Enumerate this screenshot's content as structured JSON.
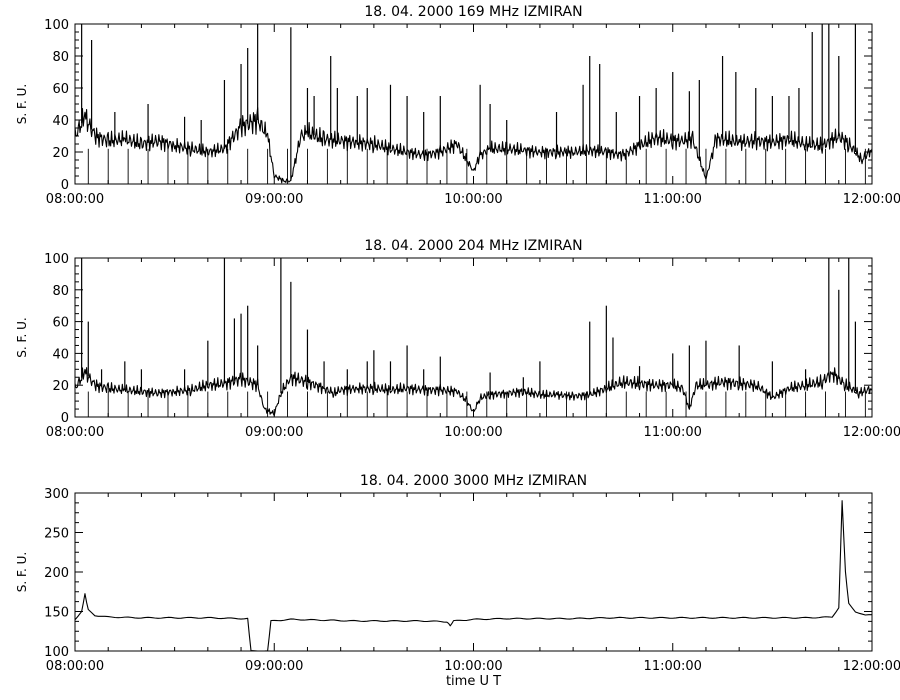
{
  "chart_data": [
    {
      "type": "line",
      "title": "18.  04.  2000    169  MHz    IZMIRAN",
      "ylabel": "S. F. U.",
      "xlabel": "",
      "xlim": [
        "08:00:00",
        "12:00:00"
      ],
      "ylim": [
        0,
        100
      ],
      "x_ticks": [
        "08:00:00",
        "09:00:00",
        "10:00:00",
        "11:00:00",
        "12:00:00"
      ],
      "y_ticks": [
        0,
        20,
        40,
        60,
        80,
        100
      ],
      "grid": false,
      "series": [
        {
          "values": [
            [
              "08:00",
              30
            ],
            [
              "08:03",
              42
            ],
            [
              "08:06",
              30
            ],
            [
              "08:10",
              27
            ],
            [
              "08:15",
              28
            ],
            [
              "08:20",
              25
            ],
            [
              "08:25",
              27
            ],
            [
              "08:30",
              24
            ],
            [
              "08:35",
              22
            ],
            [
              "08:40",
              20
            ],
            [
              "08:45",
              22
            ],
            [
              "08:50",
              36
            ],
            [
              "08:55",
              40
            ],
            [
              "08:58",
              30
            ],
            [
              "09:00",
              5
            ],
            [
              "09:03",
              2
            ],
            [
              "09:05",
              2
            ],
            [
              "09:08",
              30
            ],
            [
              "09:10",
              32
            ],
            [
              "09:15",
              28
            ],
            [
              "09:20",
              27
            ],
            [
              "09:25",
              26
            ],
            [
              "09:30",
              25
            ],
            [
              "09:35",
              22
            ],
            [
              "09:40",
              20
            ],
            [
              "09:45",
              18
            ],
            [
              "09:50",
              20
            ],
            [
              "09:55",
              25
            ],
            [
              "10:00",
              8
            ],
            [
              "10:02",
              18
            ],
            [
              "10:05",
              22
            ],
            [
              "10:10",
              22
            ],
            [
              "10:15",
              21
            ],
            [
              "10:20",
              20
            ],
            [
              "10:25",
              20
            ],
            [
              "10:30",
              20
            ],
            [
              "10:35",
              21
            ],
            [
              "10:40",
              20
            ],
            [
              "10:45",
              18
            ],
            [
              "10:50",
              24
            ],
            [
              "10:55",
              29
            ],
            [
              "11:00",
              27
            ],
            [
              "11:03",
              27
            ],
            [
              "11:06",
              28
            ],
            [
              "11:10",
              3
            ],
            [
              "11:13",
              28
            ],
            [
              "11:15",
              28
            ],
            [
              "11:20",
              26
            ],
            [
              "11:25",
              27
            ],
            [
              "11:30",
              26
            ],
            [
              "11:35",
              28
            ],
            [
              "11:40",
              25
            ],
            [
              "11:45",
              24
            ],
            [
              "11:50",
              30
            ],
            [
              "11:53",
              25
            ],
            [
              "11:57",
              15
            ],
            [
              "12:00",
              22
            ]
          ],
          "spikes": [
            [
              "08:02",
              100
            ],
            [
              "08:05",
              90
            ],
            [
              "08:12",
              45
            ],
            [
              "08:22",
              50
            ],
            [
              "08:33",
              42
            ],
            [
              "08:38",
              40
            ],
            [
              "08:45",
              65
            ],
            [
              "08:50",
              75
            ],
            [
              "08:52",
              85
            ],
            [
              "08:55",
              100
            ],
            [
              "09:05",
              98
            ],
            [
              "09:10",
              60
            ],
            [
              "09:12",
              55
            ],
            [
              "09:17",
              80
            ],
            [
              "09:19",
              60
            ],
            [
              "09:25",
              55
            ],
            [
              "09:28",
              60
            ],
            [
              "09:35",
              62
            ],
            [
              "09:40",
              55
            ],
            [
              "09:45",
              45
            ],
            [
              "09:50",
              55
            ],
            [
              "10:02",
              62
            ],
            [
              "10:05",
              50
            ],
            [
              "10:10",
              40
            ],
            [
              "10:25",
              45
            ],
            [
              "10:33",
              62
            ],
            [
              "10:35",
              80
            ],
            [
              "10:38",
              75
            ],
            [
              "10:43",
              45
            ],
            [
              "10:50",
              55
            ],
            [
              "10:55",
              60
            ],
            [
              "11:00",
              70
            ],
            [
              "11:05",
              58
            ],
            [
              "11:08",
              65
            ],
            [
              "11:15",
              80
            ],
            [
              "11:19",
              70
            ],
            [
              "11:25",
              60
            ],
            [
              "11:30",
              55
            ],
            [
              "11:35",
              55
            ],
            [
              "11:38",
              60
            ],
            [
              "11:42",
              95
            ],
            [
              "11:45",
              100
            ],
            [
              "11:47",
              100
            ],
            [
              "11:50",
              80
            ],
            [
              "11:55",
              100
            ]
          ]
        }
      ]
    },
    {
      "type": "line",
      "title": "18.  04.  2000    204  MHz    IZMIRAN",
      "ylabel": "S. F. U.",
      "xlabel": "",
      "xlim": [
        "08:00:00",
        "12:00:00"
      ],
      "ylim": [
        0,
        100
      ],
      "x_ticks": [
        "08:00:00",
        "09:00:00",
        "10:00:00",
        "11:00:00",
        "12:00:00"
      ],
      "y_ticks": [
        0,
        20,
        40,
        60,
        80,
        100
      ],
      "grid": false,
      "series": [
        {
          "values": [
            [
              "08:00",
              18
            ],
            [
              "08:03",
              28
            ],
            [
              "08:06",
              20
            ],
            [
              "08:10",
              18
            ],
            [
              "08:15",
              17
            ],
            [
              "08:20",
              16
            ],
            [
              "08:25",
              15
            ],
            [
              "08:30",
              16
            ],
            [
              "08:35",
              17
            ],
            [
              "08:40",
              20
            ],
            [
              "08:45",
              21
            ],
            [
              "08:50",
              24
            ],
            [
              "08:55",
              20
            ],
            [
              "08:57",
              5
            ],
            [
              "09:00",
              2
            ],
            [
              "09:02",
              15
            ],
            [
              "09:05",
              25
            ],
            [
              "09:10",
              22
            ],
            [
              "09:15",
              18
            ],
            [
              "09:18",
              15
            ],
            [
              "09:20",
              17
            ],
            [
              "09:25",
              18
            ],
            [
              "09:30",
              18
            ],
            [
              "09:35",
              17
            ],
            [
              "09:40",
              18
            ],
            [
              "09:45",
              17
            ],
            [
              "09:50",
              17
            ],
            [
              "09:55",
              16
            ],
            [
              "09:58",
              10
            ],
            [
              "10:00",
              3
            ],
            [
              "10:02",
              12
            ],
            [
              "10:05",
              14
            ],
            [
              "10:10",
              15
            ],
            [
              "10:15",
              16
            ],
            [
              "10:20",
              14
            ],
            [
              "10:25",
              14
            ],
            [
              "10:30",
              13
            ],
            [
              "10:35",
              14
            ],
            [
              "10:40",
              18
            ],
            [
              "10:45",
              22
            ],
            [
              "10:50",
              21
            ],
            [
              "10:55",
              20
            ],
            [
              "11:00",
              20
            ],
            [
              "11:03",
              18
            ],
            [
              "11:05",
              5
            ],
            [
              "11:07",
              20
            ],
            [
              "11:10",
              20
            ],
            [
              "11:15",
              22
            ],
            [
              "11:20",
              21
            ],
            [
              "11:25",
              20
            ],
            [
              "11:28",
              16
            ],
            [
              "11:30",
              12
            ],
            [
              "11:35",
              18
            ],
            [
              "11:40",
              20
            ],
            [
              "11:45",
              22
            ],
            [
              "11:48",
              28
            ],
            [
              "11:52",
              20
            ],
            [
              "11:56",
              15
            ],
            [
              "12:00",
              18
            ]
          ],
          "spikes": [
            [
              "08:02",
              100
            ],
            [
              "08:04",
              60
            ],
            [
              "08:08",
              30
            ],
            [
              "08:15",
              35
            ],
            [
              "08:20",
              30
            ],
            [
              "08:33",
              30
            ],
            [
              "08:40",
              48
            ],
            [
              "08:45",
              100
            ],
            [
              "08:48",
              62
            ],
            [
              "08:50",
              65
            ],
            [
              "08:52",
              70
            ],
            [
              "08:55",
              45
            ],
            [
              "09:02",
              100
            ],
            [
              "09:05",
              85
            ],
            [
              "09:10",
              55
            ],
            [
              "09:15",
              35
            ],
            [
              "09:22",
              30
            ],
            [
              "09:28",
              35
            ],
            [
              "09:30",
              42
            ],
            [
              "09:35",
              35
            ],
            [
              "09:40",
              45
            ],
            [
              "09:45",
              30
            ],
            [
              "09:50",
              38
            ],
            [
              "10:05",
              28
            ],
            [
              "10:15",
              25
            ],
            [
              "10:20",
              35
            ],
            [
              "10:35",
              60
            ],
            [
              "10:40",
              70
            ],
            [
              "10:42",
              50
            ],
            [
              "10:50",
              32
            ],
            [
              "11:00",
              40
            ],
            [
              "11:05",
              45
            ],
            [
              "11:10",
              48
            ],
            [
              "11:20",
              45
            ],
            [
              "11:30",
              35
            ],
            [
              "11:40",
              30
            ],
            [
              "11:47",
              100
            ],
            [
              "11:50",
              80
            ],
            [
              "11:53",
              100
            ],
            [
              "11:55",
              60
            ]
          ]
        }
      ]
    },
    {
      "type": "line",
      "title": "18.  04.  2000    3000  MHz    IZMIRAN",
      "ylabel": "S. F. U.",
      "xlabel": "time   U T",
      "xlim": [
        "08:00:00",
        "12:00:00"
      ],
      "ylim": [
        100,
        300
      ],
      "x_ticks": [
        "08:00:00",
        "09:00:00",
        "10:00:00",
        "11:00:00",
        "12:00:00"
      ],
      "y_ticks": [
        100,
        150,
        200,
        250,
        300
      ],
      "grid": false,
      "series": [
        {
          "values": [
            [
              "08:00",
              140
            ],
            [
              "08:02",
              150
            ],
            [
              "08:03",
              172
            ],
            [
              "08:04",
              152
            ],
            [
              "08:06",
              145
            ],
            [
              "08:10",
              143
            ],
            [
              "08:20",
              142
            ],
            [
              "08:30",
              142
            ],
            [
              "08:40",
              142
            ],
            [
              "08:50",
              141
            ],
            [
              "08:52",
              141
            ],
            [
              "08:53",
              100
            ],
            [
              "08:58",
              100
            ],
            [
              "08:59",
              138
            ],
            [
              "09:05",
              140
            ],
            [
              "09:15",
              139
            ],
            [
              "09:25",
              138
            ],
            [
              "09:35",
              138
            ],
            [
              "09:45",
              138
            ],
            [
              "09:52",
              137
            ],
            [
              "09:53",
              132
            ],
            [
              "09:54",
              138
            ],
            [
              "10:00",
              140
            ],
            [
              "10:10",
              141
            ],
            [
              "10:20",
              141
            ],
            [
              "10:30",
              141
            ],
            [
              "10:40",
              142
            ],
            [
              "10:50",
              142
            ],
            [
              "11:00",
              142
            ],
            [
              "11:10",
              142
            ],
            [
              "11:20",
              142
            ],
            [
              "11:30",
              142
            ],
            [
              "11:40",
              142
            ],
            [
              "11:48",
              143
            ],
            [
              "11:50",
              155
            ],
            [
              "11:51",
              290
            ],
            [
              "11:52",
              200
            ],
            [
              "11:53",
              160
            ],
            [
              "11:55",
              150
            ],
            [
              "11:58",
              145
            ],
            [
              "12:00",
              146
            ]
          ],
          "spikes": []
        }
      ]
    }
  ]
}
